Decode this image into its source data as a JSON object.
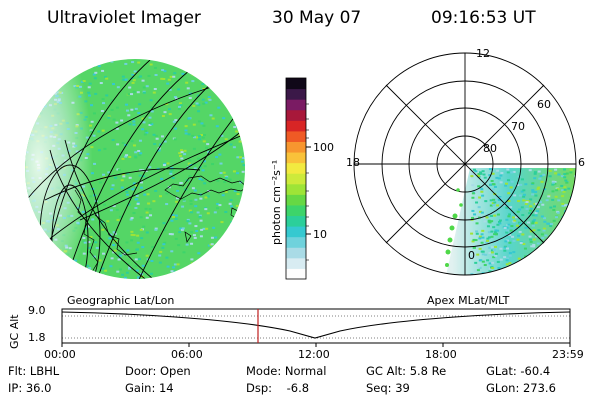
{
  "header": {
    "title": "Ultraviolet Imager",
    "date": "30 May 07",
    "time": "09:16:53 UT"
  },
  "colorbar": {
    "label": "photon cm⁻²s⁻¹",
    "ticks": [
      "100",
      "10"
    ],
    "colors": [
      "#fdfdfd",
      "#d8ecf2",
      "#a9dbe6",
      "#6fd2dc",
      "#35c9d0",
      "#2ccf9a",
      "#3dd46a",
      "#66d844",
      "#9ee437",
      "#cdea3b",
      "#f2ea40",
      "#f9c23a",
      "#f7962f",
      "#ef5a25",
      "#d82525",
      "#a8183a",
      "#7a1b63",
      "#3b1848",
      "#100818"
    ]
  },
  "polar": {
    "lat_labels": [
      "80",
      "70",
      "60"
    ],
    "mlt_labels": {
      "top": "12",
      "left": "18",
      "right": "6",
      "bottom": "0"
    }
  },
  "timeline": {
    "geo_label": "Geographic Lat/Lon",
    "apex_label": "Apex MLat/MLT",
    "ylabel": "GC Alt",
    "y_ticks": [
      "9.0",
      "1.8"
    ],
    "x_ticks": [
      "00:00",
      "06:00",
      "12:00",
      "18:00",
      "23:59"
    ],
    "current_time_color": "#c02020"
  },
  "info": {
    "flt": "Flt: LBHL",
    "ip": "IP: 36.0",
    "door": "Door: Open",
    "gain": "Gain: 14",
    "mode": "Mode: Normal",
    "dsp": "Dsp:    -6.8",
    "gcalt": "GC Alt: 5.8 Re",
    "seq": "Seq: 39",
    "glat": "GLat: -60.4",
    "glon": "GLon: 273.6"
  }
}
